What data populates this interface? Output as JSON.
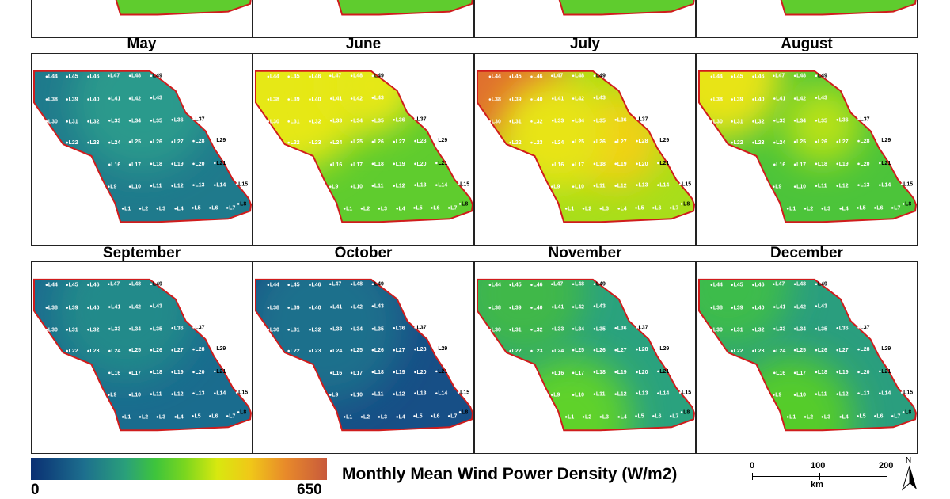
{
  "months": [
    {
      "name": "",
      "variant": "top"
    },
    {
      "name": "",
      "variant": "top"
    },
    {
      "name": "",
      "variant": "top"
    },
    {
      "name": "",
      "variant": "top"
    },
    {
      "name": "May",
      "variant": "may"
    },
    {
      "name": "June",
      "variant": "june"
    },
    {
      "name": "July",
      "variant": "july"
    },
    {
      "name": "August",
      "variant": "august"
    },
    {
      "name": "September",
      "variant": "september"
    },
    {
      "name": "October",
      "variant": "october"
    },
    {
      "name": "November",
      "variant": "november"
    },
    {
      "name": "December",
      "variant": "december"
    }
  ],
  "locations": [
    "L44",
    "L45",
    "L46",
    "L47",
    "L48",
    "L49",
    "L38",
    "L39",
    "L40",
    "L41",
    "L42",
    "L43",
    "L30",
    "L31",
    "L32",
    "L33",
    "L34",
    "L35",
    "L36",
    "L37",
    "L22",
    "L23",
    "L24",
    "L25",
    "L26",
    "L27",
    "L28",
    "L29",
    "L16",
    "L17",
    "L18",
    "L19",
    "L20",
    "L21",
    "L9",
    "L10",
    "L11",
    "L12",
    "L13",
    "L14",
    "L15",
    "L1",
    "L2",
    "L3",
    "L4",
    "L5",
    "L6",
    "L7",
    "L8"
  ],
  "legend": {
    "title": "Monthly Mean Wind Power Density (W/m2)",
    "min": "0",
    "max": "650",
    "colors": [
      "#0a2f73",
      "#1d6f8e",
      "#2aa07a",
      "#3ec43c",
      "#7ad61f",
      "#d8e80f",
      "#f0c818",
      "#e88a2a",
      "#c85a3c"
    ]
  },
  "scale": {
    "ticks": [
      "0",
      "100",
      "200"
    ],
    "unit": "km"
  },
  "north": "N",
  "palette": {
    "may": {
      "base": "#1f7a8c",
      "hi": "#2a9a8c"
    },
    "june": {
      "base": "#5fcc2e",
      "hi": "#e6e814"
    },
    "july": {
      "base": "#a8de1a",
      "hi": "#e0702e"
    },
    "august": {
      "base": "#4cc43a",
      "hi": "#e8e414"
    },
    "september": {
      "base": "#1a6c8e",
      "hi": "#238a8a"
    },
    "october": {
      "base": "#174f86",
      "hi": "#1f6f8c"
    },
    "november": {
      "base": "#2aa27e",
      "hi": "#5fd22a"
    },
    "december": {
      "base": "#2a9e7e",
      "hi": "#55cc2c"
    },
    "top": {
      "base": "#5fcc2e",
      "hi": "#3fb84a"
    },
    "boundary": "#d01c1c"
  }
}
